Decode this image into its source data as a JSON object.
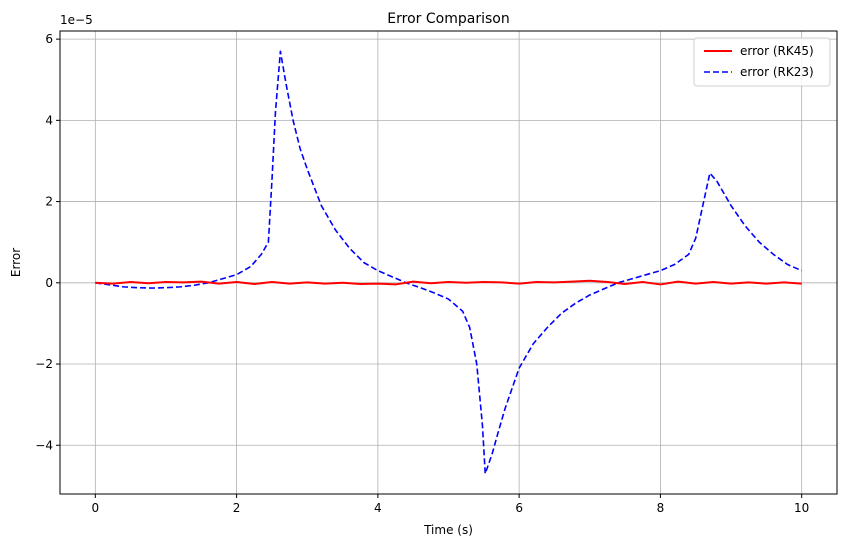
{
  "chart_data": {
    "type": "line",
    "title": "Error Comparison",
    "xlabel": "Time (s)",
    "ylabel": "Error",
    "y_offset_label": "1e−5",
    "y_scale_exponent": -5,
    "xlim": [
      -0.5,
      10.5
    ],
    "ylim": [
      -5.2,
      6.2
    ],
    "x_ticks": [
      0,
      2,
      4,
      6,
      8,
      10
    ],
    "x_tick_labels": [
      "0",
      "2",
      "4",
      "6",
      "8",
      "10"
    ],
    "y_ticks": [
      -4,
      -2,
      0,
      2,
      4,
      6
    ],
    "y_tick_labels": [
      "−4",
      "−2",
      "0",
      "2",
      "4",
      "6"
    ],
    "grid": true,
    "legend_position": "top-right",
    "series": [
      {
        "name": "error (RK45)",
        "color": "#ff0000",
        "style": "solid",
        "x": [
          0,
          0.25,
          0.5,
          0.75,
          1.0,
          1.25,
          1.5,
          1.75,
          2.0,
          2.25,
          2.5,
          2.75,
          3.0,
          3.25,
          3.5,
          3.75,
          4.0,
          4.25,
          4.5,
          4.75,
          5.0,
          5.25,
          5.5,
          5.75,
          6.0,
          6.25,
          6.5,
          6.75,
          7.0,
          7.25,
          7.5,
          7.75,
          8.0,
          8.25,
          8.5,
          8.75,
          9.0,
          9.25,
          9.5,
          9.75,
          10.0
        ],
        "y": [
          0,
          -0.02,
          0.02,
          -0.01,
          0.02,
          0.01,
          0.03,
          -0.02,
          0.02,
          -0.03,
          0.02,
          -0.02,
          0.01,
          -0.02,
          0.0,
          -0.03,
          -0.02,
          -0.04,
          0.03,
          -0.01,
          0.02,
          0.0,
          0.02,
          0.01,
          -0.02,
          0.02,
          0.01,
          0.03,
          0.05,
          0.02,
          -0.03,
          0.02,
          -0.04,
          0.03,
          -0.02,
          0.02,
          -0.02,
          0.01,
          -0.02,
          0.01,
          -0.02
        ]
      },
      {
        "name": "error (RK23)",
        "color": "#0000ff",
        "style": "dashed",
        "x": [
          0,
          0.2,
          0.4,
          0.6,
          0.8,
          1.0,
          1.2,
          1.4,
          1.6,
          1.8,
          2.0,
          2.2,
          2.35,
          2.45,
          2.5,
          2.55,
          2.62,
          2.7,
          2.8,
          2.9,
          3.0,
          3.2,
          3.4,
          3.6,
          3.8,
          4.0,
          4.2,
          4.4,
          4.6,
          4.8,
          5.0,
          5.2,
          5.3,
          5.4,
          5.48,
          5.52,
          5.56,
          5.62,
          5.7,
          5.8,
          5.9,
          6.0,
          6.2,
          6.4,
          6.6,
          6.8,
          7.0,
          7.2,
          7.4,
          7.6,
          7.8,
          8.0,
          8.2,
          8.4,
          8.5,
          8.6,
          8.7,
          8.8,
          9.0,
          9.2,
          9.4,
          9.6,
          9.8,
          10.0
        ],
        "y": [
          0,
          -0.05,
          -0.1,
          -0.12,
          -0.13,
          -0.12,
          -0.1,
          -0.06,
          0.0,
          0.1,
          0.2,
          0.4,
          0.7,
          1.0,
          2.5,
          4.2,
          5.7,
          4.9,
          4.0,
          3.3,
          2.8,
          1.9,
          1.3,
          0.85,
          0.5,
          0.3,
          0.15,
          0.0,
          -0.12,
          -0.25,
          -0.4,
          -0.7,
          -1.1,
          -2.0,
          -3.5,
          -4.7,
          -4.5,
          -4.2,
          -3.7,
          -3.1,
          -2.6,
          -2.1,
          -1.5,
          -1.1,
          -0.75,
          -0.5,
          -0.3,
          -0.15,
          0.0,
          0.1,
          0.2,
          0.3,
          0.45,
          0.7,
          1.1,
          1.9,
          2.7,
          2.5,
          1.9,
          1.4,
          1.0,
          0.7,
          0.45,
          0.3
        ]
      }
    ]
  }
}
